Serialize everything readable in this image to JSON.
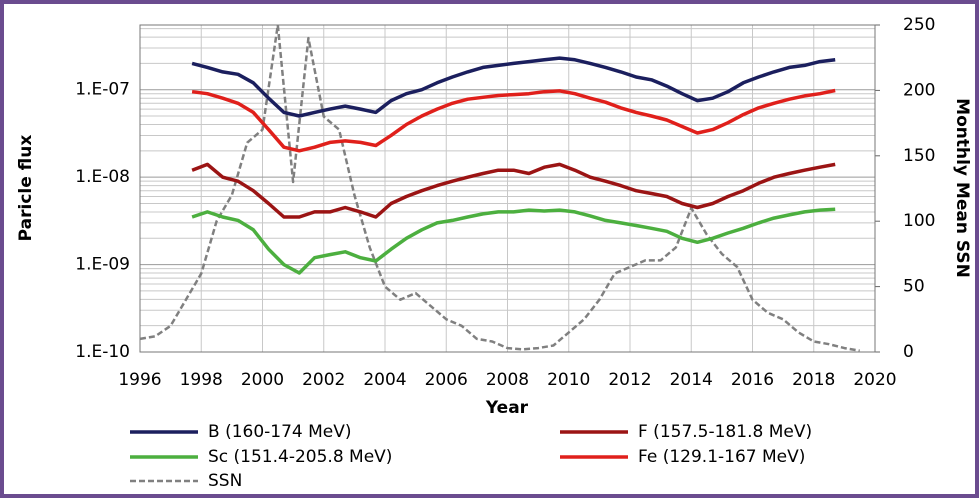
{
  "chart_data": {
    "type": "line",
    "x_label": "Year",
    "y_label": "Paricle flux",
    "y2_label": "Monthly Mean SSN",
    "xlim": [
      1996,
      2020
    ],
    "xticks": [
      1996,
      1998,
      2000,
      2002,
      2004,
      2006,
      2008,
      2010,
      2012,
      2014,
      2016,
      2018,
      2020
    ],
    "ylim": [
      1e-10,
      5.5e-07
    ],
    "yscale": "log",
    "yticks": [
      {
        "value": 1e-10,
        "label": "1.E-10"
      },
      {
        "value": 1e-09,
        "label": "1.E-09"
      },
      {
        "value": 1e-08,
        "label": "1.E-08"
      },
      {
        "value": 1e-07,
        "label": "1.E-07"
      }
    ],
    "y2lim": [
      0,
      250
    ],
    "y2ticks": [
      0,
      50,
      100,
      150,
      200,
      250
    ],
    "grid": true,
    "x": [
      1997.7,
      1998.2,
      1998.7,
      1999.2,
      1999.7,
      2000.2,
      2000.7,
      2001.2,
      2001.7,
      2002.2,
      2002.7,
      2003.2,
      2003.7,
      2004.2,
      2004.7,
      2005.2,
      2005.7,
      2006.2,
      2006.7,
      2007.2,
      2007.7,
      2008.2,
      2008.7,
      2009.2,
      2009.7,
      2010.2,
      2010.7,
      2011.2,
      2011.7,
      2012.2,
      2012.7,
      2013.2,
      2013.7,
      2014.2,
      2014.7,
      2015.2,
      2015.7,
      2016.2,
      2016.7,
      2017.2,
      2017.7,
      2018.2,
      2018.7
    ],
    "series": [
      {
        "name": "B (160-174 MeV)",
        "color": "#1b1f5e",
        "values": [
          2e-07,
          1.8e-07,
          1.6e-07,
          1.5e-07,
          1.2e-07,
          8e-08,
          5.5e-08,
          5e-08,
          5.5e-08,
          6e-08,
          6.5e-08,
          6e-08,
          5.5e-08,
          7.5e-08,
          9e-08,
          1e-07,
          1.2e-07,
          1.4e-07,
          1.6e-07,
          1.8e-07,
          1.9e-07,
          2e-07,
          2.1e-07,
          2.2e-07,
          2.3e-07,
          2.2e-07,
          2e-07,
          1.8e-07,
          1.6e-07,
          1.4e-07,
          1.3e-07,
          1.1e-07,
          9e-08,
          7.5e-08,
          8e-08,
          9.5e-08,
          1.2e-07,
          1.4e-07,
          1.6e-07,
          1.8e-07,
          1.9e-07,
          2.1e-07,
          2.2e-07
        ]
      },
      {
        "name": "F (157.5-181.8 MeV)",
        "color": "#9b1414",
        "values": [
          1.2e-08,
          1.4e-08,
          1e-08,
          9e-09,
          7e-09,
          5e-09,
          3.5e-09,
          3.5e-09,
          4e-09,
          4e-09,
          4.5e-09,
          4e-09,
          3.5e-09,
          5e-09,
          6e-09,
          7e-09,
          8e-09,
          9e-09,
          1e-08,
          1.1e-08,
          1.2e-08,
          1.2e-08,
          1.1e-08,
          1.3e-08,
          1.4e-08,
          1.2e-08,
          1e-08,
          9e-09,
          8e-09,
          7e-09,
          6.5e-09,
          6e-09,
          5e-09,
          4.5e-09,
          5e-09,
          6e-09,
          7e-09,
          8.5e-09,
          1e-08,
          1.1e-08,
          1.2e-08,
          1.3e-08,
          1.4e-08
        ]
      },
      {
        "name": "Sc (151.4-205.8 MeV)",
        "color": "#4caf3f",
        "values": [
          3.5e-09,
          4e-09,
          3.5e-09,
          3.2e-09,
          2.5e-09,
          1.5e-09,
          1e-09,
          8e-10,
          1.2e-09,
          1.3e-09,
          1.4e-09,
          1.2e-09,
          1.1e-09,
          1.5e-09,
          2e-09,
          2.5e-09,
          3e-09,
          3.2e-09,
          3.5e-09,
          3.8e-09,
          4e-09,
          4e-09,
          4.2e-09,
          4.1e-09,
          4.2e-09,
          4e-09,
          3.6e-09,
          3.2e-09,
          3e-09,
          2.8e-09,
          2.6e-09,
          2.4e-09,
          2e-09,
          1.8e-09,
          2e-09,
          2.3e-09,
          2.6e-09,
          3e-09,
          3.4e-09,
          3.7e-09,
          4e-09,
          4.2e-09,
          4.3e-09
        ]
      },
      {
        "name": "Fe (129.1-167 MeV)",
        "color": "#e0201b",
        "values": [
          9.5e-08,
          9e-08,
          8e-08,
          7e-08,
          5.5e-08,
          3.5e-08,
          2.2e-08,
          2e-08,
          2.2e-08,
          2.5e-08,
          2.6e-08,
          2.5e-08,
          2.3e-08,
          3e-08,
          4e-08,
          5e-08,
          6e-08,
          7e-08,
          7.8e-08,
          8.2e-08,
          8.6e-08,
          8.8e-08,
          9e-08,
          9.5e-08,
          9.7e-08,
          9e-08,
          8e-08,
          7.2e-08,
          6.2e-08,
          5.5e-08,
          5e-08,
          4.5e-08,
          3.8e-08,
          3.2e-08,
          3.5e-08,
          4.2e-08,
          5.2e-08,
          6.2e-08,
          7e-08,
          7.8e-08,
          8.5e-08,
          9e-08,
          9.8e-08
        ]
      },
      {
        "name": "SSN",
        "color": "#808080",
        "axis": "y2",
        "dashed": true,
        "x": [
          1996,
          1996.5,
          1997,
          1997.5,
          1998,
          1998.5,
          1999,
          1999.5,
          2000,
          2000.5,
          2001,
          2001.5,
          2002,
          2002.5,
          2003,
          2003.5,
          2004,
          2004.5,
          2005,
          2005.5,
          2006,
          2006.5,
          2007,
          2007.5,
          2008,
          2008.5,
          2009,
          2009.5,
          2010,
          2010.5,
          2011,
          2011.5,
          2012,
          2012.5,
          2013,
          2013.5,
          2014,
          2014.5,
          2015,
          2015.5,
          2016,
          2016.5,
          2017,
          2017.5,
          2018,
          2018.5,
          2019,
          2019.5
        ],
        "values": [
          10,
          12,
          20,
          40,
          60,
          100,
          120,
          160,
          170,
          250,
          130,
          240,
          180,
          170,
          120,
          80,
          50,
          40,
          45,
          35,
          25,
          20,
          10,
          8,
          3,
          2,
          3,
          5,
          15,
          25,
          40,
          60,
          65,
          70,
          70,
          80,
          110,
          90,
          75,
          65,
          40,
          30,
          25,
          15,
          8,
          6,
          3,
          1
        ]
      }
    ]
  }
}
